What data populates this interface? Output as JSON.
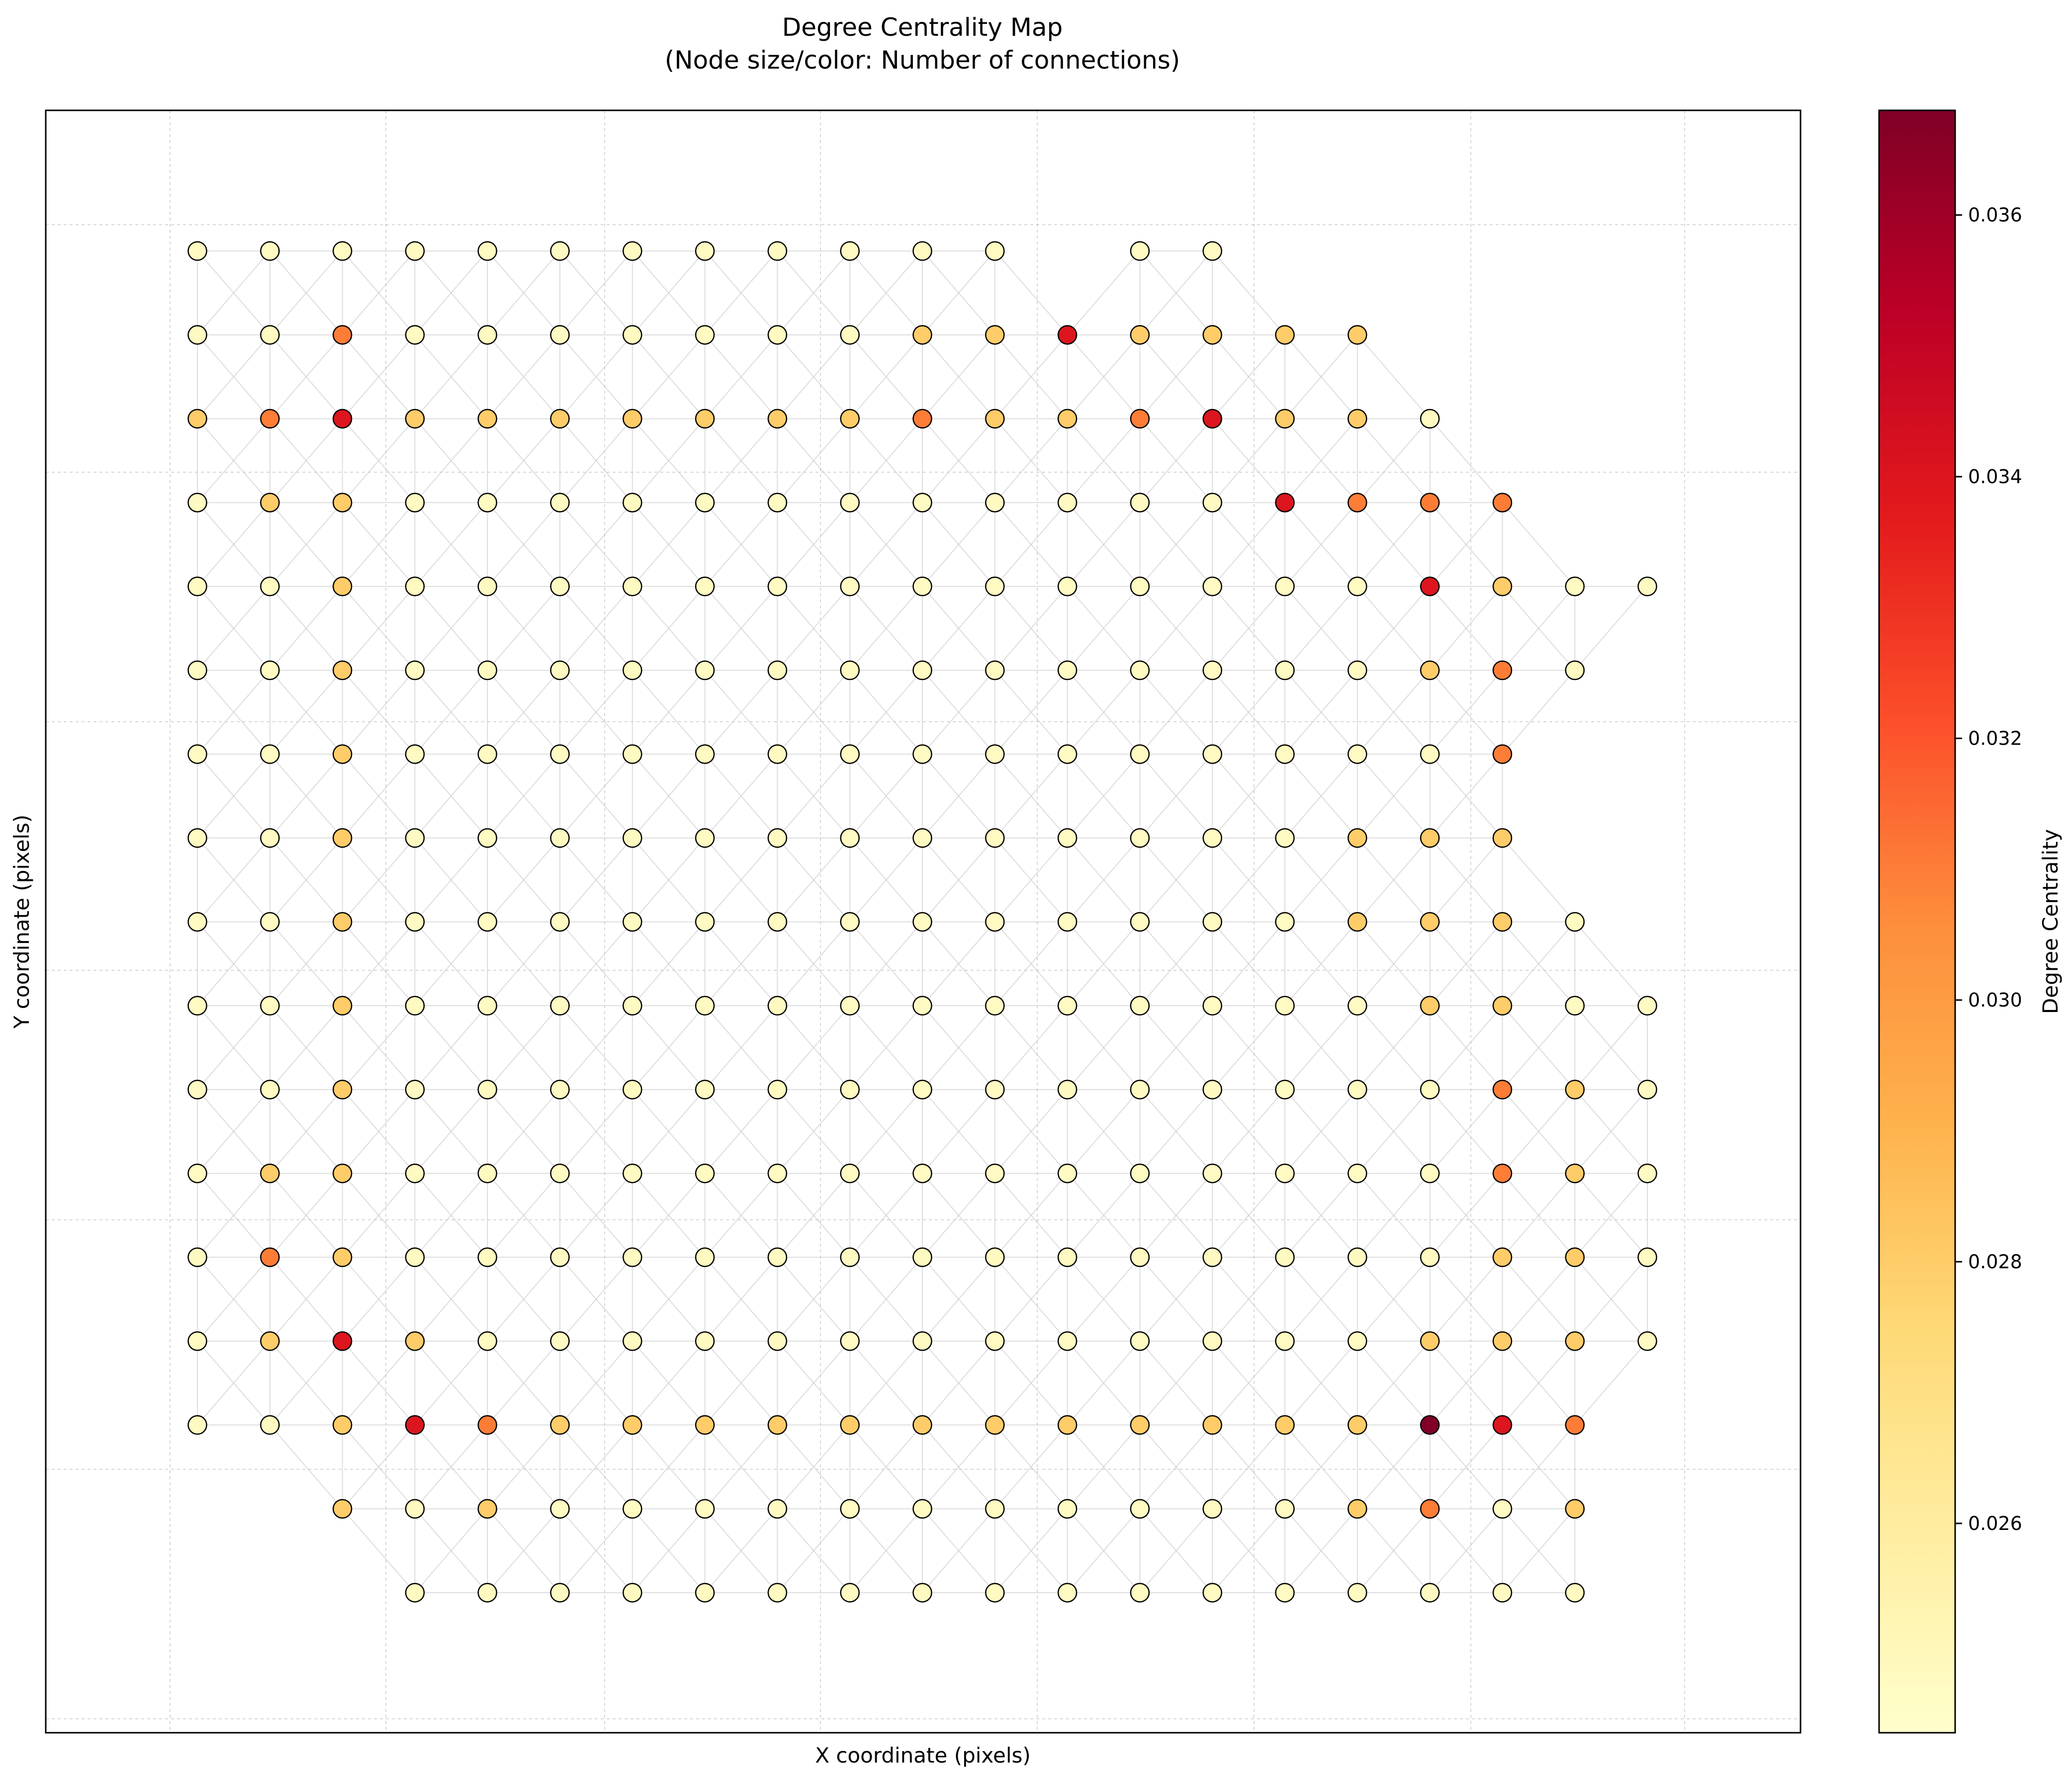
{
  "chart_data": {
    "type": "scatter",
    "title": "Degree Centrality Map",
    "subtitle": "(Node size/color: Number of connections)",
    "xlabel": "X coordinate (pixels)",
    "ylabel": "Y coordinate (pixels)",
    "grid": true,
    "colormap": {
      "name": "YlOrRd",
      "stops": [
        "#ffffcc",
        "#ffeda0",
        "#fed976",
        "#feb24c",
        "#fd8d3c",
        "#fc4e2a",
        "#e31a1c",
        "#bd0026",
        "#800026"
      ]
    },
    "colorbar": {
      "label": "Degree Centrality",
      "range": [
        0.0244,
        0.0368
      ],
      "ticks": [
        "0.026",
        "0.028",
        "0.030",
        "0.032",
        "0.034",
        "0.036"
      ]
    },
    "node_rows": [
      {
        "row": 1,
        "cols": [
          1,
          2,
          3,
          4,
          5,
          6,
          7,
          8,
          9,
          10,
          11,
          12,
          14,
          15
        ]
      },
      {
        "row": 2,
        "cols": [
          1,
          2,
          3,
          4,
          5,
          6,
          7,
          8,
          9,
          10,
          11,
          12,
          13,
          14,
          15,
          16,
          17
        ]
      },
      {
        "row": 3,
        "cols": [
          1,
          2,
          3,
          4,
          5,
          6,
          7,
          8,
          9,
          10,
          11,
          12,
          13,
          14,
          15,
          16,
          17,
          18
        ]
      },
      {
        "row": 4,
        "cols": [
          1,
          2,
          3,
          4,
          5,
          6,
          7,
          8,
          9,
          10,
          11,
          12,
          13,
          14,
          15,
          16,
          17,
          18,
          19
        ]
      },
      {
        "row": 5,
        "cols": [
          1,
          2,
          3,
          4,
          5,
          6,
          7,
          8,
          9,
          10,
          11,
          12,
          13,
          14,
          15,
          16,
          17,
          18,
          19,
          20,
          21
        ]
      },
      {
        "row": 6,
        "cols": [
          1,
          2,
          3,
          4,
          5,
          6,
          7,
          8,
          9,
          10,
          11,
          12,
          13,
          14,
          15,
          16,
          17,
          18,
          19,
          20
        ]
      },
      {
        "row": 7,
        "cols": [
          1,
          2,
          3,
          4,
          5,
          6,
          7,
          8,
          9,
          10,
          11,
          12,
          13,
          14,
          15,
          16,
          17,
          18,
          19
        ]
      },
      {
        "row": 8,
        "cols": [
          1,
          2,
          3,
          4,
          5,
          6,
          7,
          8,
          9,
          10,
          11,
          12,
          13,
          14,
          15,
          16,
          17,
          18,
          19
        ]
      },
      {
        "row": 9,
        "cols": [
          1,
          2,
          3,
          4,
          5,
          6,
          7,
          8,
          9,
          10,
          11,
          12,
          13,
          14,
          15,
          16,
          17,
          18,
          19,
          20
        ]
      },
      {
        "row": 10,
        "cols": [
          1,
          2,
          3,
          4,
          5,
          6,
          7,
          8,
          9,
          10,
          11,
          12,
          13,
          14,
          15,
          16,
          17,
          18,
          19,
          20,
          21
        ]
      },
      {
        "row": 11,
        "cols": [
          1,
          2,
          3,
          4,
          5,
          6,
          7,
          8,
          9,
          10,
          11,
          12,
          13,
          14,
          15,
          16,
          17,
          18,
          19,
          20,
          21
        ]
      },
      {
        "row": 12,
        "cols": [
          1,
          2,
          3,
          4,
          5,
          6,
          7,
          8,
          9,
          10,
          11,
          12,
          13,
          14,
          15,
          16,
          17,
          18,
          19,
          20,
          21
        ]
      },
      {
        "row": 13,
        "cols": [
          1,
          2,
          3,
          4,
          5,
          6,
          7,
          8,
          9,
          10,
          11,
          12,
          13,
          14,
          15,
          16,
          17,
          18,
          19,
          20,
          21
        ]
      },
      {
        "row": 14,
        "cols": [
          1,
          2,
          3,
          4,
          5,
          6,
          7,
          8,
          9,
          10,
          11,
          12,
          13,
          14,
          15,
          16,
          17,
          18,
          19,
          20,
          21
        ]
      },
      {
        "row": 15,
        "cols": [
          1,
          2,
          3,
          4,
          5,
          6,
          7,
          8,
          9,
          10,
          11,
          12,
          13,
          14,
          15,
          16,
          17,
          18,
          19,
          20
        ]
      },
      {
        "row": 16,
        "cols": [
          3,
          4,
          5,
          6,
          7,
          8,
          9,
          10,
          11,
          12,
          13,
          14,
          15,
          16,
          17,
          18,
          19,
          20
        ]
      },
      {
        "row": 17,
        "cols": [
          4,
          5,
          6,
          7,
          8,
          9,
          10,
          11,
          12,
          13,
          14,
          15,
          16,
          17,
          18,
          19,
          20
        ]
      }
    ],
    "centrality_levels": {
      "low": 0.0248,
      "medium": 0.028,
      "high": 0.031,
      "very_high": 0.034,
      "max": 0.0368
    },
    "elevated_nodes": [
      {
        "row": 2,
        "col": 3,
        "level": "high"
      },
      {
        "row": 2,
        "col": 11,
        "level": "medium"
      },
      {
        "row": 2,
        "col": 12,
        "level": "medium"
      },
      {
        "row": 2,
        "col": 13,
        "level": "very_high"
      },
      {
        "row": 2,
        "col": 14,
        "level": "medium"
      },
      {
        "row": 2,
        "col": 15,
        "level": "medium"
      },
      {
        "row": 2,
        "col": 16,
        "level": "medium"
      },
      {
        "row": 2,
        "col": 17,
        "level": "medium"
      },
      {
        "row": 3,
        "col": 1,
        "level": "medium"
      },
      {
        "row": 3,
        "col": 2,
        "level": "high"
      },
      {
        "row": 3,
        "col": 3,
        "level": "very_high"
      },
      {
        "row": 3,
        "col": 4,
        "level": "medium"
      },
      {
        "row": 3,
        "col": 5,
        "level": "medium"
      },
      {
        "row": 3,
        "col": 6,
        "level": "medium"
      },
      {
        "row": 3,
        "col": 7,
        "level": "medium"
      },
      {
        "row": 3,
        "col": 8,
        "level": "medium"
      },
      {
        "row": 3,
        "col": 9,
        "level": "medium"
      },
      {
        "row": 3,
        "col": 10,
        "level": "medium"
      },
      {
        "row": 3,
        "col": 11,
        "level": "high"
      },
      {
        "row": 3,
        "col": 12,
        "level": "medium"
      },
      {
        "row": 3,
        "col": 13,
        "level": "medium"
      },
      {
        "row": 3,
        "col": 14,
        "level": "high"
      },
      {
        "row": 3,
        "col": 15,
        "level": "very_high"
      },
      {
        "row": 3,
        "col": 16,
        "level": "medium"
      },
      {
        "row": 3,
        "col": 17,
        "level": "medium"
      },
      {
        "row": 4,
        "col": 2,
        "level": "medium"
      },
      {
        "row": 4,
        "col": 3,
        "level": "medium"
      },
      {
        "row": 4,
        "col": 16,
        "level": "very_high"
      },
      {
        "row": 4,
        "col": 17,
        "level": "high"
      },
      {
        "row": 4,
        "col": 18,
        "level": "high"
      },
      {
        "row": 4,
        "col": 19,
        "level": "high"
      },
      {
        "row": 5,
        "col": 3,
        "level": "medium"
      },
      {
        "row": 5,
        "col": 18,
        "level": "very_high"
      },
      {
        "row": 5,
        "col": 19,
        "level": "medium"
      },
      {
        "row": 6,
        "col": 3,
        "level": "medium"
      },
      {
        "row": 6,
        "col": 18,
        "level": "medium"
      },
      {
        "row": 6,
        "col": 19,
        "level": "high"
      },
      {
        "row": 7,
        "col": 3,
        "level": "medium"
      },
      {
        "row": 7,
        "col": 19,
        "level": "high"
      },
      {
        "row": 8,
        "col": 3,
        "level": "medium"
      },
      {
        "row": 8,
        "col": 17,
        "level": "medium"
      },
      {
        "row": 8,
        "col": 18,
        "level": "medium"
      },
      {
        "row": 8,
        "col": 19,
        "level": "medium"
      },
      {
        "row": 9,
        "col": 3,
        "level": "medium"
      },
      {
        "row": 9,
        "col": 17,
        "level": "medium"
      },
      {
        "row": 9,
        "col": 18,
        "level": "medium"
      },
      {
        "row": 9,
        "col": 19,
        "level": "medium"
      },
      {
        "row": 10,
        "col": 3,
        "level": "medium"
      },
      {
        "row": 10,
        "col": 18,
        "level": "medium"
      },
      {
        "row": 10,
        "col": 19,
        "level": "medium"
      },
      {
        "row": 11,
        "col": 3,
        "level": "medium"
      },
      {
        "row": 11,
        "col": 19,
        "level": "high"
      },
      {
        "row": 11,
        "col": 20,
        "level": "medium"
      },
      {
        "row": 12,
        "col": 2,
        "level": "medium"
      },
      {
        "row": 12,
        "col": 3,
        "level": "medium"
      },
      {
        "row": 12,
        "col": 19,
        "level": "high"
      },
      {
        "row": 12,
        "col": 20,
        "level": "medium"
      },
      {
        "row": 13,
        "col": 2,
        "level": "high"
      },
      {
        "row": 13,
        "col": 3,
        "level": "medium"
      },
      {
        "row": 13,
        "col": 19,
        "level": "medium"
      },
      {
        "row": 13,
        "col": 20,
        "level": "medium"
      },
      {
        "row": 14,
        "col": 2,
        "level": "medium"
      },
      {
        "row": 14,
        "col": 3,
        "level": "very_high"
      },
      {
        "row": 14,
        "col": 4,
        "level": "medium"
      },
      {
        "row": 14,
        "col": 18,
        "level": "medium"
      },
      {
        "row": 14,
        "col": 19,
        "level": "medium"
      },
      {
        "row": 14,
        "col": 20,
        "level": "medium"
      },
      {
        "row": 15,
        "col": 3,
        "level": "medium"
      },
      {
        "row": 15,
        "col": 4,
        "level": "very_high"
      },
      {
        "row": 15,
        "col": 5,
        "level": "high"
      },
      {
        "row": 15,
        "col": 6,
        "level": "medium"
      },
      {
        "row": 15,
        "col": 7,
        "level": "medium"
      },
      {
        "row": 15,
        "col": 8,
        "level": "medium"
      },
      {
        "row": 15,
        "col": 9,
        "level": "medium"
      },
      {
        "row": 15,
        "col": 10,
        "level": "medium"
      },
      {
        "row": 15,
        "col": 11,
        "level": "medium"
      },
      {
        "row": 15,
        "col": 12,
        "level": "medium"
      },
      {
        "row": 15,
        "col": 13,
        "level": "medium"
      },
      {
        "row": 15,
        "col": 14,
        "level": "medium"
      },
      {
        "row": 15,
        "col": 15,
        "level": "medium"
      },
      {
        "row": 15,
        "col": 16,
        "level": "medium"
      },
      {
        "row": 15,
        "col": 17,
        "level": "medium"
      },
      {
        "row": 15,
        "col": 18,
        "level": "max"
      },
      {
        "row": 15,
        "col": 19,
        "level": "very_high"
      },
      {
        "row": 15,
        "col": 20,
        "level": "high"
      },
      {
        "row": 16,
        "col": 3,
        "level": "medium"
      },
      {
        "row": 16,
        "col": 5,
        "level": "medium"
      },
      {
        "row": 16,
        "col": 17,
        "level": "medium"
      },
      {
        "row": 16,
        "col": 18,
        "level": "high"
      },
      {
        "row": 16,
        "col": 20,
        "level": "medium"
      }
    ]
  }
}
